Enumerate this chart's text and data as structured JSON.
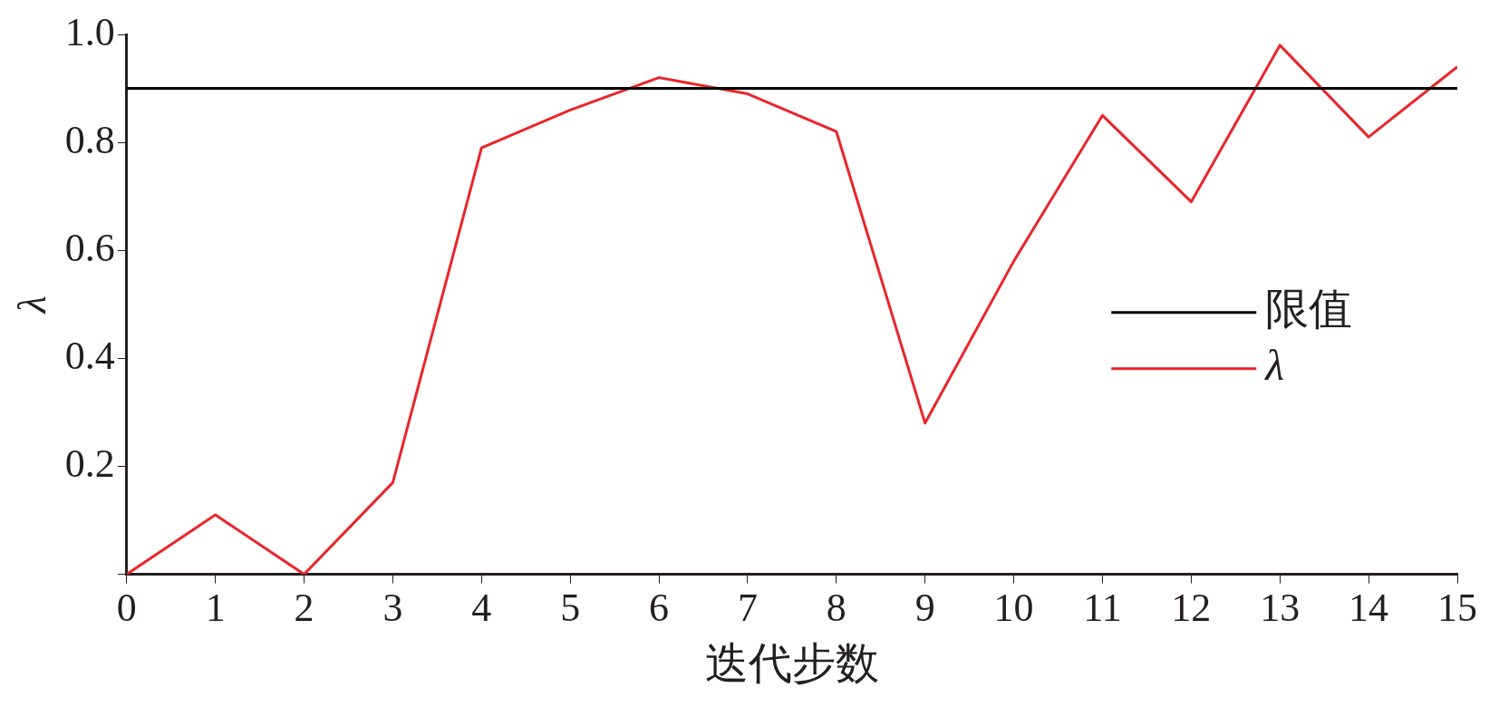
{
  "chart_data": {
    "type": "line",
    "xlabel": "迭代步数",
    "ylabel": "λ",
    "x": [
      0,
      1,
      2,
      3,
      4,
      5,
      6,
      7,
      8,
      9,
      10,
      11,
      12,
      13,
      14,
      15
    ],
    "series": [
      {
        "name": "λ",
        "color": "#e8262a",
        "values": [
          0,
          0.11,
          0,
          0.17,
          0.79,
          0.86,
          0.92,
          0.89,
          0.82,
          0.28,
          0.58,
          0.85,
          0.69,
          0.98,
          0.81,
          0.94
        ]
      }
    ],
    "ref_lines": [
      {
        "axis": "y",
        "value": 0.9,
        "label": "限值",
        "color": "#000000"
      }
    ],
    "xlim": [
      0,
      15
    ],
    "xticks": [
      0,
      1,
      2,
      3,
      4,
      5,
      6,
      7,
      8,
      9,
      10,
      11,
      12,
      13,
      14,
      15
    ],
    "ylim": [
      0,
      1
    ],
    "yticks": [
      {
        "value": 0,
        "label": null
      },
      0.2,
      0.4,
      0.6,
      0.8,
      {
        "value": 1,
        "label": "1.0"
      }
    ],
    "grid": false,
    "legend": "right",
    "marker": "none",
    "line_style": "solid"
  }
}
